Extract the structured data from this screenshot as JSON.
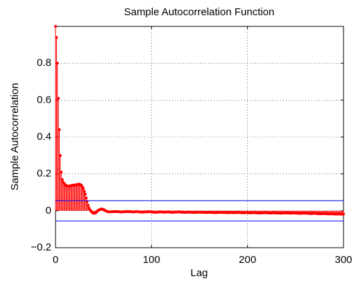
{
  "chart_data": {
    "type": "stem",
    "title": "Sample Autocorrelation Function",
    "x_label": "Lag",
    "y_label": "Sample Autocorrelation",
    "xlim": [
      0,
      300
    ],
    "xticks": [
      0,
      100,
      200,
      300
    ],
    "ylim": [
      -0.2,
      1
    ],
    "yticks": [
      {
        "value": -0.2,
        "label": "−0.2"
      },
      0,
      0.2,
      0.4,
      0.6,
      0.8
    ],
    "grid": true,
    "bounds": {
      "color": "#0000ff",
      "values": [
        0.055,
        -0.055
      ]
    },
    "x": [
      0,
      1,
      2,
      3,
      4,
      5,
      6,
      7,
      8,
      9,
      10,
      11,
      12,
      13,
      14,
      15,
      16,
      17,
      18,
      19,
      20,
      21,
      22,
      23,
      24,
      25,
      26,
      27,
      28,
      29,
      30,
      31,
      32,
      33,
      34,
      35,
      36,
      37,
      38,
      39,
      40,
      41,
      42,
      43,
      44,
      45,
      46,
      47,
      48,
      49,
      50,
      51,
      52,
      53,
      54,
      55,
      56,
      57,
      58,
      59,
      60,
      61,
      62,
      63,
      64,
      65,
      66,
      67,
      68,
      69,
      70,
      71,
      72,
      73,
      74,
      75,
      76,
      77,
      78,
      79,
      80,
      81,
      82,
      83,
      84,
      85,
      86,
      87,
      88,
      89,
      90,
      91,
      92,
      93,
      94,
      95,
      96,
      97,
      98,
      99,
      100,
      101,
      102,
      103,
      104,
      105,
      106,
      107,
      108,
      109,
      110,
      111,
      112,
      113,
      114,
      115,
      116,
      117,
      118,
      119,
      120,
      121,
      122,
      123,
      124,
      125,
      126,
      127,
      128,
      129,
      130,
      131,
      132,
      133,
      134,
      135,
      136,
      137,
      138,
      139,
      140,
      141,
      142,
      143,
      144,
      145,
      146,
      147,
      148,
      149,
      150,
      151,
      152,
      153,
      154,
      155,
      156,
      157,
      158,
      159,
      160,
      161,
      162,
      163,
      164,
      165,
      166,
      167,
      168,
      169,
      170,
      171,
      172,
      173,
      174,
      175,
      176,
      177,
      178,
      179,
      180,
      181,
      182,
      183,
      184,
      185,
      186,
      187,
      188,
      189,
      190,
      191,
      192,
      193,
      194,
      195,
      196,
      197,
      198,
      199,
      200,
      201,
      202,
      203,
      204,
      205,
      206,
      207,
      208,
      209,
      210,
      211,
      212,
      213,
      214,
      215,
      216,
      217,
      218,
      219,
      220,
      221,
      222,
      223,
      224,
      225,
      226,
      227,
      228,
      229,
      230,
      231,
      232,
      233,
      234,
      235,
      236,
      237,
      238,
      239,
      240,
      241,
      242,
      243,
      244,
      245,
      246,
      247,
      248,
      249,
      250,
      251,
      252,
      253,
      254,
      255,
      256,
      257,
      258,
      259,
      260,
      261,
      262,
      263,
      264,
      265,
      266,
      267,
      268,
      269,
      270,
      271,
      272,
      273,
      274,
      275,
      276,
      277,
      278,
      279,
      280,
      281,
      282,
      283,
      284,
      285,
      286,
      287,
      288,
      289,
      290,
      291,
      292,
      293,
      294,
      295,
      296,
      297,
      298,
      299,
      300
    ],
    "color": "#ff0000",
    "values": [
      1,
      0.94,
      0.8,
      0.61,
      0.44,
      0.3,
      0.21,
      0.17,
      0.155,
      0.148,
      0.142,
      0.138,
      0.135,
      0.134,
      0.134,
      0.135,
      0.136,
      0.137,
      0.138,
      0.139,
      0.14,
      0.141,
      0.142,
      0.143,
      0.144,
      0.144,
      0.142,
      0.138,
      0.13,
      0.12,
      0.105,
      0.09,
      0.07,
      0.05,
      0.03,
      0.015,
      0.005,
      -0.002,
      -0.008,
      -0.012,
      -0.014,
      -0.013,
      -0.01,
      -0.005,
      0,
      0.004,
      0.007,
      0.009,
      0.01,
      0.009,
      0.007,
      0.004,
      0.001,
      -0.002,
      -0.004,
      -0.005,
      -0.006,
      -0.006,
      -0.005,
      -0.005,
      -0.005,
      -0.005,
      -0.004,
      -0.004,
      -0.004,
      -0.005,
      -0.005,
      -0.006,
      -0.006,
      -0.006,
      -0.006,
      -0.005,
      -0.005,
      -0.005,
      -0.004,
      -0.004,
      -0.004,
      -0.005,
      -0.005,
      -0.005,
      -0.006,
      -0.006,
      -0.006,
      -0.005,
      -0.005,
      -0.005,
      -0.005,
      -0.006,
      -0.006,
      -0.007,
      -0.007,
      -0.007,
      -0.006,
      -0.006,
      -0.006,
      -0.006,
      -0.005,
      -0.005,
      -0.005,
      -0.006,
      -0.006,
      -0.007,
      -0.007,
      -0.007,
      -0.008,
      -0.008,
      -0.007,
      -0.007,
      -0.006,
      -0.006,
      -0.006,
      -0.006,
      -0.007,
      -0.007,
      -0.007,
      -0.007,
      -0.006,
      -0.006,
      -0.006,
      -0.007,
      -0.007,
      -0.008,
      -0.008,
      -0.008,
      -0.007,
      -0.007,
      -0.007,
      -0.006,
      -0.006,
      -0.006,
      -0.007,
      -0.007,
      -0.007,
      -0.008,
      -0.008,
      -0.008,
      -0.008,
      -0.007,
      -0.007,
      -0.007,
      -0.007,
      -0.008,
      -0.008,
      -0.008,
      -0.009,
      -0.009,
      -0.008,
      -0.008,
      -0.008,
      -0.007,
      -0.007,
      -0.007,
      -0.008,
      -0.008,
      -0.008,
      -0.008,
      -0.009,
      -0.009,
      -0.009,
      -0.008,
      -0.008,
      -0.008,
      -0.008,
      -0.009,
      -0.009,
      -0.009,
      -0.01,
      -0.01,
      -0.009,
      -0.009,
      -0.009,
      -0.008,
      -0.008,
      -0.008,
      -0.009,
      -0.009,
      -0.009,
      -0.009,
      -0.01,
      -0.01,
      -0.01,
      -0.009,
      -0.009,
      -0.009,
      -0.009,
      -0.01,
      -0.01,
      -0.01,
      -0.01,
      -0.009,
      -0.009,
      -0.009,
      -0.009,
      -0.01,
      -0.01,
      -0.011,
      -0.011,
      -0.01,
      -0.01,
      -0.01,
      -0.01,
      -0.01,
      -0.011,
      -0.011,
      -0.011,
      -0.01,
      -0.01,
      -0.01,
      -0.01,
      -0.011,
      -0.011,
      -0.011,
      -0.012,
      -0.012,
      -0.011,
      -0.011,
      -0.011,
      -0.01,
      -0.01,
      -0.01,
      -0.011,
      -0.011,
      -0.011,
      -0.012,
      -0.012,
      -0.012,
      -0.011,
      -0.011,
      -0.011,
      -0.011,
      -0.012,
      -0.012,
      -0.012,
      -0.012,
      -0.013,
      -0.013,
      -0.012,
      -0.012,
      -0.012,
      -0.011,
      -0.011,
      -0.012,
      -0.012,
      -0.012,
      -0.013,
      -0.013,
      -0.013,
      -0.012,
      -0.012,
      -0.012,
      -0.012,
      -0.013,
      -0.013,
      -0.013,
      -0.013,
      -0.014,
      -0.014,
      -0.013,
      -0.013,
      -0.013,
      -0.013,
      -0.013,
      -0.014,
      -0.014,
      -0.014,
      -0.014,
      -0.015,
      -0.015,
      -0.014,
      -0.014,
      -0.014,
      -0.014,
      -0.015,
      -0.015,
      -0.015,
      -0.016,
      -0.016,
      -0.015,
      -0.015,
      -0.015,
      -0.015,
      -0.016,
      -0.016,
      -0.016,
      -0.017,
      -0.017,
      -0.016,
      -0.016,
      -0.016,
      -0.017,
      -0.017,
      -0.017,
      -0.018,
      -0.018,
      -0.017,
      -0.017,
      -0.017,
      -0.018,
      -0.018,
      -0.018,
      -0.017
    ]
  }
}
